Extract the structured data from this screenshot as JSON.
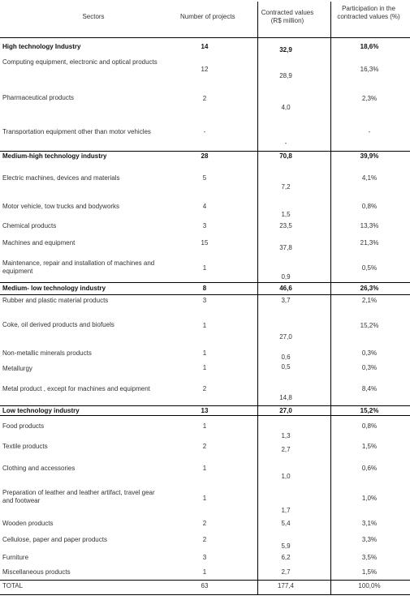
{
  "headers": {
    "sectors": "Sectors",
    "projects": "Number of projects",
    "values": "Contracted values (R$ million)",
    "participation": "Participation in the contracted values (%)"
  },
  "rows": [
    {
      "name": "High technology Industry",
      "projects": "14",
      "value": "32,9",
      "pct": "18,6%",
      "bold": true
    },
    {
      "name": "Computing equipment, electronic and optical products",
      "projects": "12",
      "value": "28,9",
      "pct": "16,3%"
    },
    {
      "name": "Pharmaceutical products",
      "projects": "2",
      "value": "4,0",
      "pct": "2,3%"
    },
    {
      "name": "Transportation equipment other than motor vehicles",
      "projects": "-",
      "value": "-",
      "pct": "-"
    },
    {
      "name": "Medium-high technology industry",
      "projects": "28",
      "value": "70,8",
      "pct": "39,9%",
      "bold": true
    },
    {
      "name": "Electric machines, devices and materials",
      "projects": "5",
      "value": "7,2",
      "pct": "4,1%"
    },
    {
      "name": "Motor vehicle, tow trucks and bodyworks",
      "projects": "4",
      "value": "1,5",
      "pct": "0,8%"
    },
    {
      "name": "Chemical products",
      "projects": "3",
      "value": "23,5",
      "pct": "13,3%"
    },
    {
      "name": "Machines and equipment",
      "projects": "15",
      "value": "37,8",
      "pct": "21,3%"
    },
    {
      "name": "Maintenance, repair and installation of machines and equipment",
      "projects": "1",
      "value": "0,9",
      "pct": "0,5%"
    },
    {
      "name": "Medium- low technology industry",
      "projects": "8",
      "value": "46,6",
      "pct": "26,3%",
      "bold": true
    },
    {
      "name": "Rubber and plastic material products",
      "projects": "3",
      "value": "3,7",
      "pct": "2,1%"
    },
    {
      "name": "Coke, oil derived products and biofuels",
      "projects": "1",
      "value": "27,0",
      "pct": "15,2%"
    },
    {
      "name": "Non-metallic minerals products",
      "projects": "1",
      "value": "0,6",
      "pct": "0,3%"
    },
    {
      "name": "Metallurgy",
      "projects": "1",
      "value": "0,5",
      "pct": "0,3%"
    },
    {
      "name": "Metal product , except for machines and equipment",
      "projects": "2",
      "value": "14,8",
      "pct": "8,4%"
    },
    {
      "name": "Low technology industry",
      "projects": "13",
      "value": "27,0",
      "pct": "15,2%",
      "bold": true
    },
    {
      "name": "Food products",
      "projects": "1",
      "value": "1,3",
      "pct": "0,8%"
    },
    {
      "name": "Textile products",
      "projects": "2",
      "value": "2,7",
      "pct": "1,5%"
    },
    {
      "name": "Clothing and accessories",
      "projects": "1",
      "value": "1,0",
      "pct": "0,6%"
    },
    {
      "name": "Preparation of leather and leather artifact, travel gear and footwear",
      "projects": "1",
      "value": "1,7",
      "pct": "1,0%"
    },
    {
      "name": "Wooden products",
      "projects": "2",
      "value": "5,4",
      "pct": "3,1%"
    },
    {
      "name": "Cellulose, paper and paper products",
      "projects": "2",
      "value": "5,9",
      "pct": "3,3%"
    },
    {
      "name": "Furniture",
      "projects": "3",
      "value": "6,2",
      "pct": "3,5%"
    },
    {
      "name": "Miscellaneous products",
      "projects": "1",
      "value": "2,7",
      "pct": "1,5%"
    },
    {
      "name": "TOTAL",
      "projects": "63",
      "value": "177,4",
      "pct": "100,0%",
      "bold": true
    }
  ]
}
